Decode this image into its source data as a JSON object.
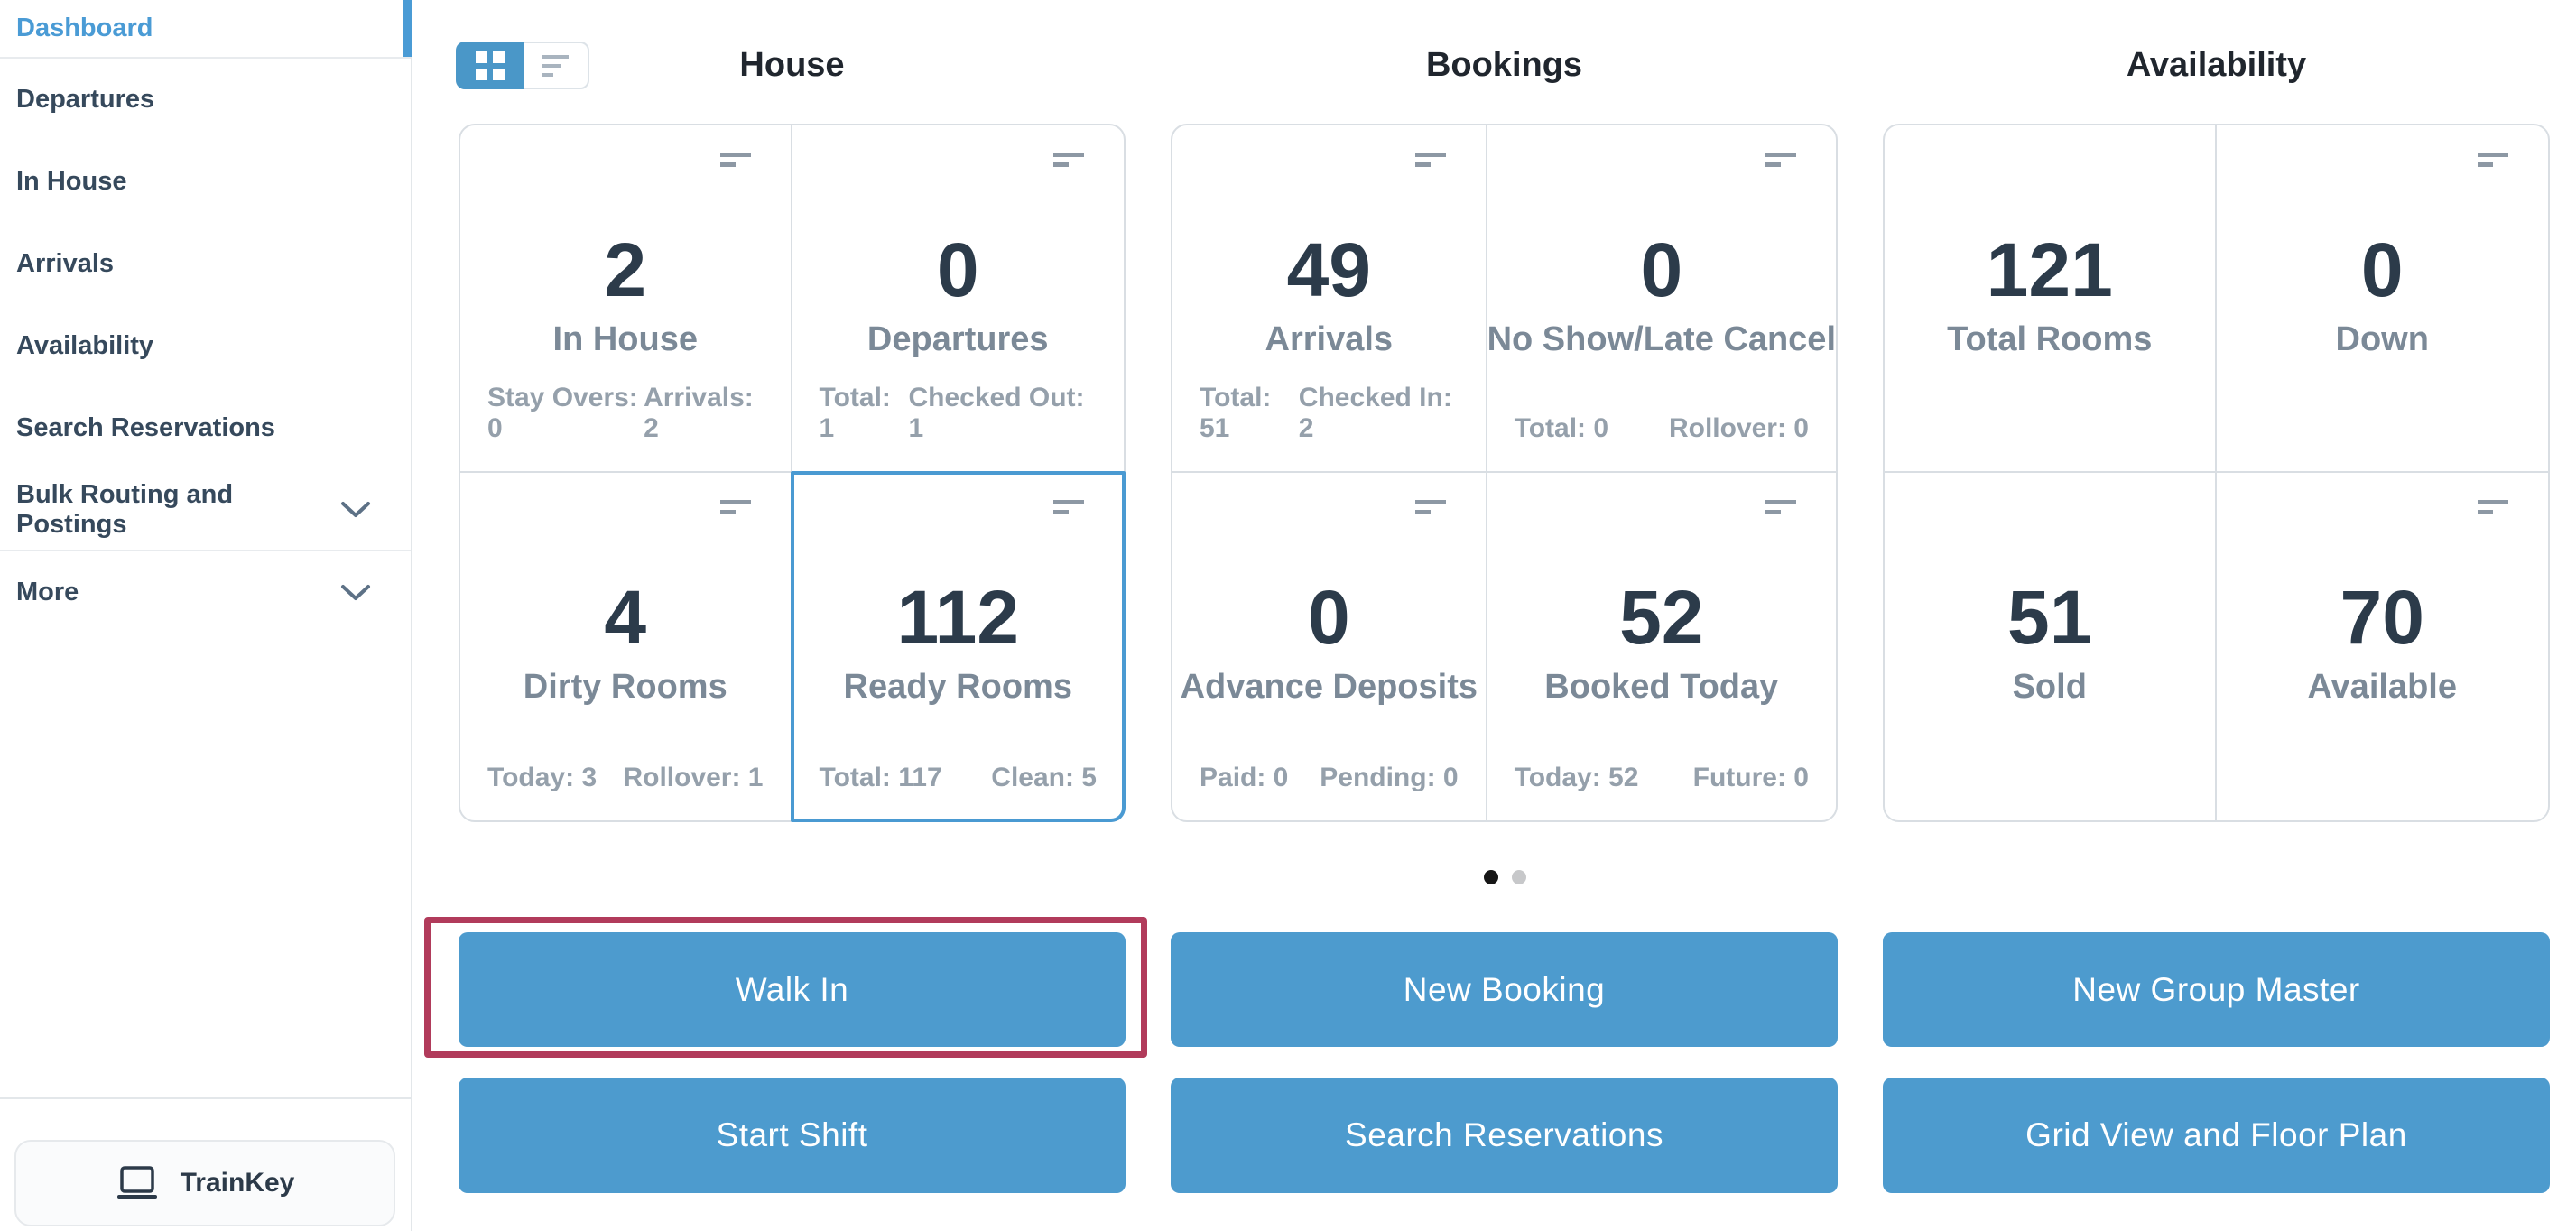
{
  "sidebar": {
    "items": [
      {
        "label": "Dashboard",
        "active": true,
        "chevron": false
      },
      {
        "label": "Departures",
        "active": false,
        "chevron": false
      },
      {
        "label": "In House",
        "active": false,
        "chevron": false
      },
      {
        "label": "Arrivals",
        "active": false,
        "chevron": false
      },
      {
        "label": "Availability",
        "active": false,
        "chevron": false
      },
      {
        "label": "Search Reservations",
        "active": false,
        "chevron": false
      },
      {
        "label": "Bulk Routing and Postings",
        "active": false,
        "chevron": true,
        "divider_after": true
      },
      {
        "label": "More",
        "active": false,
        "chevron": true
      }
    ],
    "trainkey": {
      "label": "TrainKey",
      "icon": "laptop-icon"
    }
  },
  "view_toggle": {
    "options": [
      {
        "icon": "grid-view-icon",
        "active": true
      },
      {
        "icon": "list-view-icon",
        "active": false
      }
    ]
  },
  "sections": [
    {
      "title": "House",
      "cards": [
        {
          "value": "2",
          "label": "In House",
          "footer_left": "Stay Overs: 0",
          "footer_right": "Arrivals: 2",
          "menu": true,
          "highlighted": false
        },
        {
          "value": "0",
          "label": "Departures",
          "footer_left": "Total: 1",
          "footer_right": "Checked Out: 1",
          "menu": true,
          "highlighted": false
        },
        {
          "value": "4",
          "label": "Dirty Rooms",
          "footer_left": "Today: 3",
          "footer_right": "Rollover: 1",
          "menu": true,
          "highlighted": false
        },
        {
          "value": "112",
          "label": "Ready Rooms",
          "footer_left": "Total: 117",
          "footer_right": "Clean: 5",
          "menu": true,
          "highlighted": true
        }
      ]
    },
    {
      "title": "Bookings",
      "cards": [
        {
          "value": "49",
          "label": "Arrivals",
          "footer_left": "Total: 51",
          "footer_right": "Checked In: 2",
          "menu": true,
          "highlighted": false
        },
        {
          "value": "0",
          "label": "No Show/Late Cancel",
          "footer_left": "Total: 0",
          "footer_right": "Rollover: 0",
          "menu": true,
          "highlighted": false
        },
        {
          "value": "0",
          "label": "Advance Deposits",
          "footer_left": "Paid: 0",
          "footer_right": "Pending: 0",
          "menu": true,
          "highlighted": false
        },
        {
          "value": "52",
          "label": "Booked Today",
          "footer_left": "Today: 52",
          "footer_right": "Future: 0",
          "menu": true,
          "highlighted": false
        }
      ]
    },
    {
      "title": "Availability",
      "cards": [
        {
          "value": "121",
          "label": "Total Rooms",
          "footer_left": null,
          "footer_right": null,
          "menu": false,
          "highlighted": false
        },
        {
          "value": "0",
          "label": "Down",
          "footer_left": null,
          "footer_right": null,
          "menu": true,
          "highlighted": false
        },
        {
          "value": "51",
          "label": "Sold",
          "footer_left": null,
          "footer_right": null,
          "menu": false,
          "highlighted": false
        },
        {
          "value": "70",
          "label": "Available",
          "footer_left": null,
          "footer_right": null,
          "menu": true,
          "highlighted": false
        }
      ]
    }
  ],
  "carousel": {
    "dots": [
      {
        "active": true
      },
      {
        "active": false
      }
    ]
  },
  "action_buttons": {
    "row1": [
      "Walk In",
      "New Booking",
      "New Group Master"
    ],
    "row2": [
      "Start Shift",
      "Search Reservations",
      "Grid View and Floor Plan"
    ],
    "highlighted": "Walk In"
  },
  "icons": [
    "grid-view-icon",
    "list-view-icon",
    "card-menu-icon",
    "chevron-down-icon",
    "laptop-icon"
  ],
  "colors": {
    "accent_blue": "#4d9bce",
    "toggle_blue": "#4a97c8",
    "active_nav_blue": "#4a9bd5",
    "card_highlight_blue": "#4a9ad2",
    "annotation_maroon": "#b13b5b",
    "number_text": "#2c3b4a",
    "label_text": "#7b8997",
    "footer_text": "#95a0ab",
    "nav_text": "#36495c",
    "card_border": "#d9dee3"
  }
}
